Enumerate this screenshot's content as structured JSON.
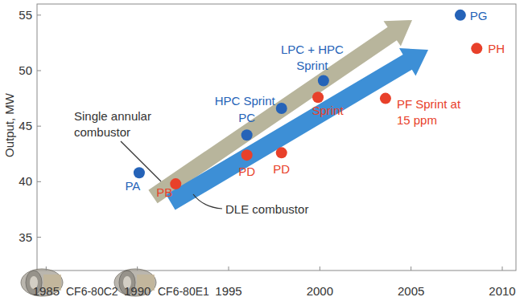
{
  "chart_data": {
    "type": "scatter",
    "y_label": "Output, MW",
    "xlim": [
      1984.5,
      2010.75
    ],
    "ylim": [
      32,
      56
    ],
    "xticks": [
      1985,
      1990,
      1995,
      2000,
      2005,
      2010
    ],
    "yticks": [
      35,
      40,
      45,
      50,
      55
    ],
    "grid": false,
    "series": [
      {
        "name": "Single annular combustor",
        "color": "#2563b8",
        "marker": "circle",
        "x": [
          1990.1,
          1996,
          1997.9,
          2000.2,
          2007.7
        ],
        "values": [
          40.8,
          44.2,
          46.6,
          49.1,
          55.0
        ],
        "labels": [
          [
            "PA"
          ],
          [
            "PC"
          ],
          [
            "HPC Sprint"
          ],
          [
            "LPC + HPC",
            "Sprint"
          ],
          [
            "PG"
          ]
        ]
      },
      {
        "name": "DLE combustor",
        "color": "#e8402a",
        "marker": "circle",
        "x": [
          1992.1,
          1996,
          1997.9,
          1999.9,
          2003.6,
          2008.6
        ],
        "values": [
          39.8,
          42.4,
          42.6,
          47.6,
          47.5,
          52.0
        ],
        "labels": [
          [
            "PB"
          ],
          [
            "PD"
          ],
          [
            "PD"
          ],
          [
            "Sprint"
          ],
          [
            "PF Sprint at",
            "15 ppm"
          ],
          [
            "PH"
          ]
        ]
      }
    ],
    "annotations": [
      "CF6-80C2",
      "CF6-80E1"
    ]
  }
}
